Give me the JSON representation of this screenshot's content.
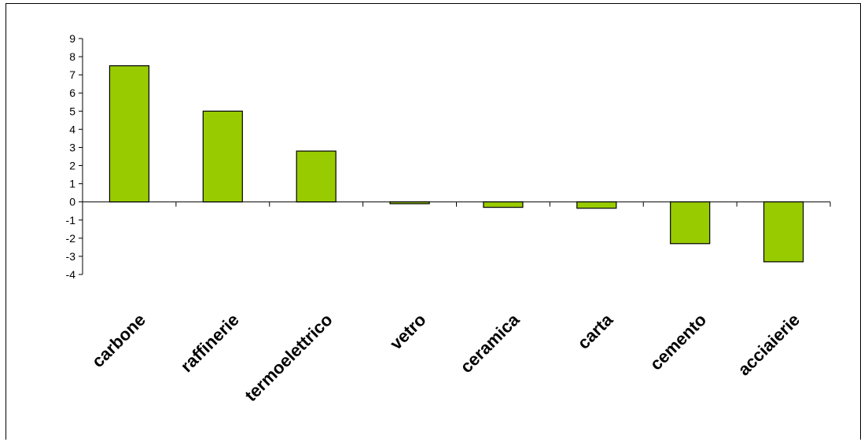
{
  "chart_data": {
    "type": "bar",
    "categories": [
      "carbone",
      "raffinerie",
      "termoelettrico",
      "vetro",
      "ceramica",
      "carta",
      "cemento",
      "acciaierie"
    ],
    "values": [
      7.5,
      5.0,
      2.8,
      -0.1,
      -0.3,
      -0.35,
      -2.3,
      -3.3
    ],
    "title": "",
    "xlabel": "",
    "ylabel": "",
    "ylim": [
      -4,
      9
    ],
    "yticks": [
      "9",
      "8",
      "7",
      "6",
      "5",
      "4",
      "3",
      "2",
      "1",
      "0",
      "-1",
      "-2",
      "-3",
      "-4"
    ],
    "grid": false,
    "legend": "none",
    "colors": {
      "bar_fill": "#99cc00",
      "bar_stroke": "#000000",
      "axis": "#000000"
    }
  }
}
